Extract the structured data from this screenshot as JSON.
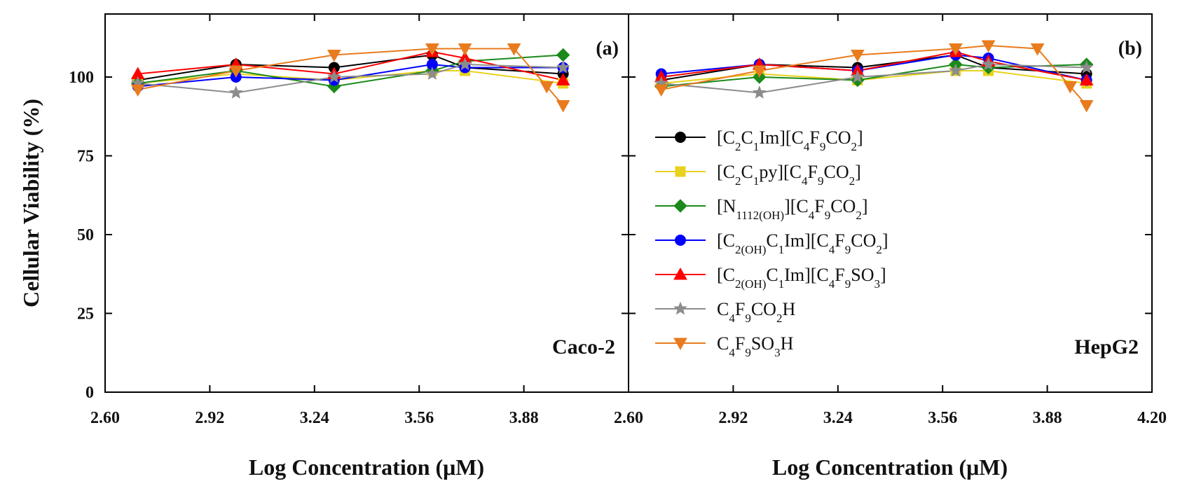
{
  "chart_data": {
    "type": "line",
    "ylabel": "Cellular Viability (%)",
    "xlabel": "Log Concentration (μM)",
    "ylim": [
      0,
      120
    ],
    "yticks": [
      0,
      25,
      50,
      75,
      100
    ],
    "ytick_labels": [
      "0",
      "25",
      "50",
      "75",
      "100"
    ],
    "xticks": [
      2.6,
      2.92,
      3.24,
      3.56,
      3.88,
      4.2
    ],
    "xtick_labels": [
      "2.60",
      "2.92",
      "3.24",
      "3.56",
      "3.88",
      "2.60",
      "2.92",
      "3.24",
      "3.56",
      "3.88",
      "4.20"
    ],
    "legend": {
      "placement": "center-left of panel (b)",
      "entries": [
        {
          "series": "C2C1Im_C4F9CO2",
          "parts": [
            [
              "[C",
              ""
            ],
            [
              "2",
              "sub"
            ],
            [
              "C",
              ""
            ],
            [
              "1",
              "sub"
            ],
            [
              "Im][C",
              ""
            ],
            [
              "4",
              "sub"
            ],
            [
              "F",
              ""
            ],
            [
              "9",
              "sub"
            ],
            [
              "CO",
              ""
            ],
            [
              "2",
              "sub"
            ],
            [
              "]",
              ""
            ]
          ]
        },
        {
          "series": "C2C1py_C4F9CO2",
          "parts": [
            [
              "[C",
              ""
            ],
            [
              "2",
              "sub"
            ],
            [
              "C",
              ""
            ],
            [
              "1",
              "sub"
            ],
            [
              "py][C",
              ""
            ],
            [
              "4",
              "sub"
            ],
            [
              "F",
              ""
            ],
            [
              "9",
              "sub"
            ],
            [
              "CO",
              ""
            ],
            [
              "2",
              "sub"
            ],
            [
              "]",
              ""
            ]
          ]
        },
        {
          "series": "N1112OH_C4F9CO2",
          "parts": [
            [
              "[N",
              ""
            ],
            [
              "1112(OH)",
              "sub"
            ],
            [
              "][C",
              ""
            ],
            [
              "4",
              "sub"
            ],
            [
              "F",
              ""
            ],
            [
              "9",
              "sub"
            ],
            [
              "CO",
              ""
            ],
            [
              "2",
              "sub"
            ],
            [
              "]",
              ""
            ]
          ]
        },
        {
          "series": "C2OHC1Im_C4F9CO2",
          "parts": [
            [
              "[C",
              ""
            ],
            [
              "2(OH)",
              "sub"
            ],
            [
              "C",
              ""
            ],
            [
              "1",
              "sub"
            ],
            [
              "Im][C",
              ""
            ],
            [
              "4",
              "sub"
            ],
            [
              "F",
              ""
            ],
            [
              "9",
              "sub"
            ],
            [
              "CO",
              ""
            ],
            [
              "2",
              "sub"
            ],
            [
              "]",
              ""
            ]
          ]
        },
        {
          "series": "C2OHC1Im_C4F9SO3",
          "parts": [
            [
              "[C",
              ""
            ],
            [
              "2(OH)",
              "sub"
            ],
            [
              "C",
              ""
            ],
            [
              "1",
              "sub"
            ],
            [
              "Im][C",
              ""
            ],
            [
              "4",
              "sub"
            ],
            [
              "F",
              ""
            ],
            [
              "9",
              "sub"
            ],
            [
              "SO",
              ""
            ],
            [
              "3",
              "sub"
            ],
            [
              "]",
              ""
            ]
          ]
        },
        {
          "series": "C4F9CO2H",
          "parts": [
            [
              "C",
              ""
            ],
            [
              "4",
              "sub"
            ],
            [
              "F",
              ""
            ],
            [
              "9",
              "sub"
            ],
            [
              "CO",
              ""
            ],
            [
              "2",
              "sub"
            ],
            [
              "H",
              ""
            ]
          ]
        },
        {
          "series": "C4F9SO3H",
          "parts": [
            [
              "C",
              ""
            ],
            [
              "4",
              "sub"
            ],
            [
              "F",
              ""
            ],
            [
              "9",
              "sub"
            ],
            [
              "SO",
              ""
            ],
            [
              "3",
              "sub"
            ],
            [
              "H",
              ""
            ]
          ]
        }
      ]
    },
    "series_styles": [
      {
        "name": "[C2C1Im][C4F9CO2]",
        "key": "C2C1Im_C4F9CO2",
        "color": "#000000",
        "marker": "circle"
      },
      {
        "name": "[C2C1py][C4F9CO2]",
        "key": "C2C1py_C4F9CO2",
        "color": "#e8d21d",
        "marker": "square"
      },
      {
        "name": "[N1112(OH)][C4F9CO2]",
        "key": "N1112OH_C4F9CO2",
        "color": "#1a8a1a",
        "marker": "diamond"
      },
      {
        "name": "[C2(OH)C1Im][C4F9CO2]",
        "key": "C2OHC1Im_C4F9CO2",
        "color": "#0000ff",
        "marker": "circle"
      },
      {
        "name": "[C2(OH)C1Im][C4F9SO3]",
        "key": "C2OHC1Im_C4F9SO3",
        "color": "#ff0000",
        "marker": "triangle-up"
      },
      {
        "name": "C4F9CO2H",
        "key": "C4F9CO2H",
        "color": "#8c8c8c",
        "marker": "star"
      },
      {
        "name": "C4F9SO3H",
        "key": "C4F9SO3H",
        "color": "#e87b1e",
        "marker": "triangle-down"
      }
    ],
    "panels": [
      {
        "tag": "(a)",
        "cell_line": "Caco-2",
        "xlim": [
          2.6,
          4.2
        ],
        "series": [
          {
            "key": "C2C1Im_C4F9CO2",
            "x": [
              2.7,
              3.0,
              3.3,
              3.6,
              3.7,
              4.0
            ],
            "y": [
              99,
              104,
              103,
              107,
              103,
              101
            ]
          },
          {
            "key": "C2C1py_C4F9CO2",
            "x": [
              2.7,
              3.0,
              3.3,
              3.6,
              3.7,
              4.0
            ],
            "y": [
              98,
              101,
              99,
              102,
              102,
              98
            ]
          },
          {
            "key": "N1112OH_C4F9CO2",
            "x": [
              2.7,
              3.0,
              3.3,
              3.6,
              3.7,
              4.0
            ],
            "y": [
              98,
              102,
              97,
              102,
              105,
              107
            ]
          },
          {
            "key": "C2OHC1Im_C4F9CO2",
            "x": [
              2.7,
              3.0,
              3.3,
              3.6,
              3.7,
              4.0
            ],
            "y": [
              97,
              100,
              99,
              104,
              103,
              103
            ]
          },
          {
            "key": "C2OHC1Im_C4F9SO3",
            "x": [
              2.7,
              3.0,
              3.3,
              3.6,
              3.7,
              4.0
            ],
            "y": [
              101,
              104,
              101,
              108,
              106,
              99
            ]
          },
          {
            "key": "C4F9CO2H",
            "x": [
              2.7,
              3.0,
              3.3,
              3.6,
              3.7,
              4.0
            ],
            "y": [
              98,
              95,
              100,
              101,
              104,
              103
            ]
          },
          {
            "key": "C4F9SO3H",
            "x": [
              2.7,
              3.0,
              3.3,
              3.6,
              3.7,
              3.85,
              3.95,
              4.0
            ],
            "y": [
              96,
              102,
              107,
              109,
              109,
              109,
              97,
              91
            ]
          }
        ]
      },
      {
        "tag": "(b)",
        "cell_line": "HepG2",
        "xlim": [
          2.6,
          4.2
        ],
        "series": [
          {
            "key": "C2C1Im_C4F9CO2",
            "x": [
              2.7,
              3.0,
              3.3,
              3.6,
              3.7,
              4.0
            ],
            "y": [
              99,
              104,
              103,
              107,
              103,
              101
            ]
          },
          {
            "key": "C2C1py_C4F9CO2",
            "x": [
              2.7,
              3.0,
              3.3,
              3.6,
              3.7,
              4.0
            ],
            "y": [
              98,
              101,
              99,
              102,
              102,
              98
            ]
          },
          {
            "key": "N1112OH_C4F9CO2",
            "x": [
              2.7,
              3.0,
              3.3,
              3.6,
              3.7,
              4.0
            ],
            "y": [
              97,
              100,
              99,
              104,
              103,
              104
            ]
          },
          {
            "key": "C2OHC1Im_C4F9CO2",
            "x": [
              2.7,
              3.0,
              3.3,
              3.6,
              3.7,
              4.0
            ],
            "y": [
              101,
              104,
              102,
              107,
              106,
              99
            ]
          },
          {
            "key": "C2OHC1Im_C4F9SO3",
            "x": [
              2.7,
              3.0,
              3.3,
              3.6,
              3.7,
              4.0
            ],
            "y": [
              100,
              104,
              102,
              108,
              105,
              99
            ]
          },
          {
            "key": "C4F9CO2H",
            "x": [
              2.7,
              3.0,
              3.3,
              3.6,
              3.7,
              4.0
            ],
            "y": [
              98,
              95,
              100,
              102,
              104,
              103
            ]
          },
          {
            "key": "C4F9SO3H",
            "x": [
              2.7,
              3.0,
              3.3,
              3.6,
              3.7,
              3.85,
              3.95,
              4.0
            ],
            "y": [
              96,
              102,
              107,
              109,
              110,
              109,
              97,
              91
            ]
          }
        ]
      }
    ]
  }
}
